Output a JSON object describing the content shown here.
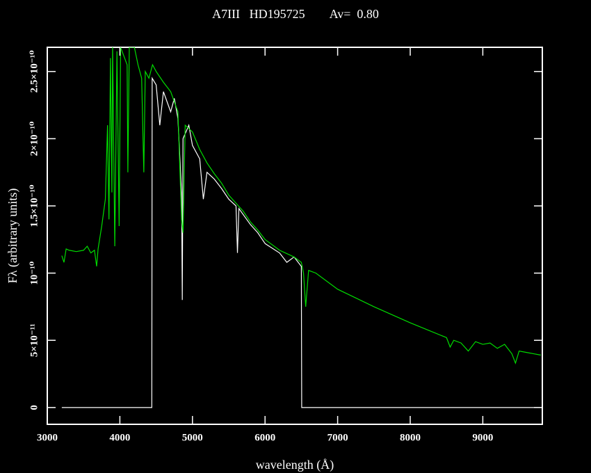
{
  "chart_data": {
    "type": "line",
    "title": "A7III   HD195725        Av=  0.80",
    "xlabel": "wavelength (Å)",
    "ylabel": "Fλ (arbitrary units)",
    "xlim": [
      3000,
      9820
    ],
    "ylim": [
      -1.25e-11,
      2.68e-10
    ],
    "xticks": [
      3000,
      4000,
      5000,
      6000,
      7000,
      8000,
      9000
    ],
    "yticks": [
      0,
      {
        "value": 5e-11,
        "label": "5×10⁻¹¹"
      },
      {
        "value": 1e-10,
        "label": "10⁻¹⁰"
      },
      {
        "value": 1.5e-10,
        "label": "1.5×10⁻¹⁰"
      },
      {
        "value": 2e-10,
        "label": "2×10⁻¹⁰"
      },
      {
        "value": 2.5e-10,
        "label": "2.5×10⁻¹⁰"
      }
    ],
    "series": [
      {
        "color": "#ffffff",
        "x": [
          3200,
          4440,
          4445,
          4500,
          4550,
          4600,
          4700,
          4750,
          4800,
          4850,
          4860,
          4870,
          4950,
          5000,
          5100,
          5150,
          5200,
          5300,
          5400,
          5500,
          5600,
          5620,
          5640,
          5800,
          5900,
          6000,
          6200,
          6300,
          6400,
          6500,
          6505,
          9800
        ],
        "values": [
          0,
          0,
          2.45e-10,
          2.4e-10,
          2.1e-10,
          2.35e-10,
          2.2e-10,
          2.3e-10,
          2.15e-10,
          1.6e-10,
          8e-11,
          2e-10,
          2.1e-10,
          1.95e-10,
          1.85e-10,
          1.55e-10,
          1.75e-10,
          1.7e-10,
          1.63e-10,
          1.55e-10,
          1.5e-10,
          1.15e-10,
          1.48e-10,
          1.36e-10,
          1.3e-10,
          1.22e-10,
          1.15e-10,
          1.08e-10,
          1.12e-10,
          1.05e-10,
          0,
          0
        ]
      },
      {
        "color": "#00dd00",
        "x": [
          3200,
          3230,
          3260,
          3300,
          3400,
          3500,
          3550,
          3600,
          3650,
          3680,
          3700,
          3750,
          3800,
          3830,
          3850,
          3870,
          3890,
          3900,
          3930,
          3960,
          3990,
          4010,
          4100,
          4110,
          4130,
          4200,
          4250,
          4300,
          4330,
          4350,
          4400,
          4450,
          4500,
          4600,
          4700,
          4800,
          4850,
          4870,
          4900,
          5000,
          5100,
          5200,
          5300,
          5400,
          5500,
          5600,
          5700,
          5800,
          5900,
          6000,
          6200,
          6400,
          6500,
          6530,
          6560,
          6600,
          6700,
          7000,
          7500,
          8000,
          8500,
          8550,
          8600,
          8700,
          8800,
          8900,
          9000,
          9100,
          9200,
          9300,
          9400,
          9450,
          9500,
          9600,
          9700,
          9800
        ],
        "values": [
          1.13e-10,
          1.08e-10,
          1.18e-10,
          1.17e-10,
          1.16e-10,
          1.17e-10,
          1.2e-10,
          1.15e-10,
          1.17e-10,
          1.05e-10,
          1.18e-10,
          1.35e-10,
          1.55e-10,
          2.1e-10,
          1.4e-10,
          2.6e-10,
          1.6e-10,
          2.7e-10,
          1.2e-10,
          2.65e-10,
          1.35e-10,
          2.68e-10,
          2.55e-10,
          1.75e-10,
          2.68e-10,
          2.68e-10,
          2.55e-10,
          2.45e-10,
          1.75e-10,
          2.5e-10,
          2.45e-10,
          2.55e-10,
          2.5e-10,
          2.42e-10,
          2.35e-10,
          2.2e-10,
          1.4e-10,
          1.3e-10,
          2.1e-10,
          2.05e-10,
          1.92e-10,
          1.82e-10,
          1.74e-10,
          1.67e-10,
          1.58e-10,
          1.52e-10,
          1.46e-10,
          1.38e-10,
          1.32e-10,
          1.25e-10,
          1.17e-10,
          1.12e-10,
          1.08e-10,
          1e-10,
          7.5e-11,
          1.02e-10,
          1e-10,
          8.8e-11,
          7.5e-11,
          6.3e-11,
          5.2e-11,
          4.5e-11,
          5e-11,
          4.8e-11,
          4.2e-11,
          4.9e-11,
          4.7e-11,
          4.8e-11,
          4.4e-11,
          4.7e-11,
          4e-11,
          3.3e-11,
          4.2e-11,
          4.1e-11,
          4e-11,
          3.9e-11
        ]
      }
    ]
  }
}
